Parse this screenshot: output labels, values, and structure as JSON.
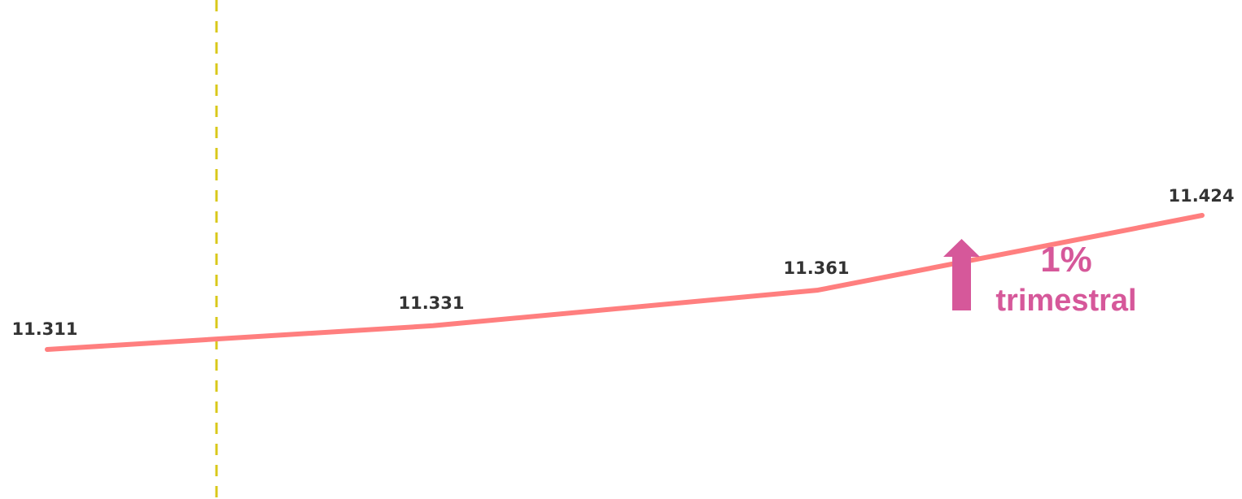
{
  "chart_data": {
    "type": "line",
    "title": "",
    "xlabel": "",
    "ylabel": "",
    "ylim": [
      11.0,
      11.6
    ],
    "grid": false,
    "legend": "none",
    "series": [
      {
        "values": [
          11.311,
          11.331,
          11.361,
          11.424
        ],
        "labels": [
          "11.311",
          "11.331",
          "11.361",
          "11.424"
        ],
        "color": "#ff7f7f"
      }
    ],
    "reference_line": {
      "style": "dashed",
      "color": "#d9c81a"
    },
    "annotation": {
      "percent": "1%",
      "period": "trimestral",
      "direction": "up",
      "color": "#d6589a"
    }
  }
}
